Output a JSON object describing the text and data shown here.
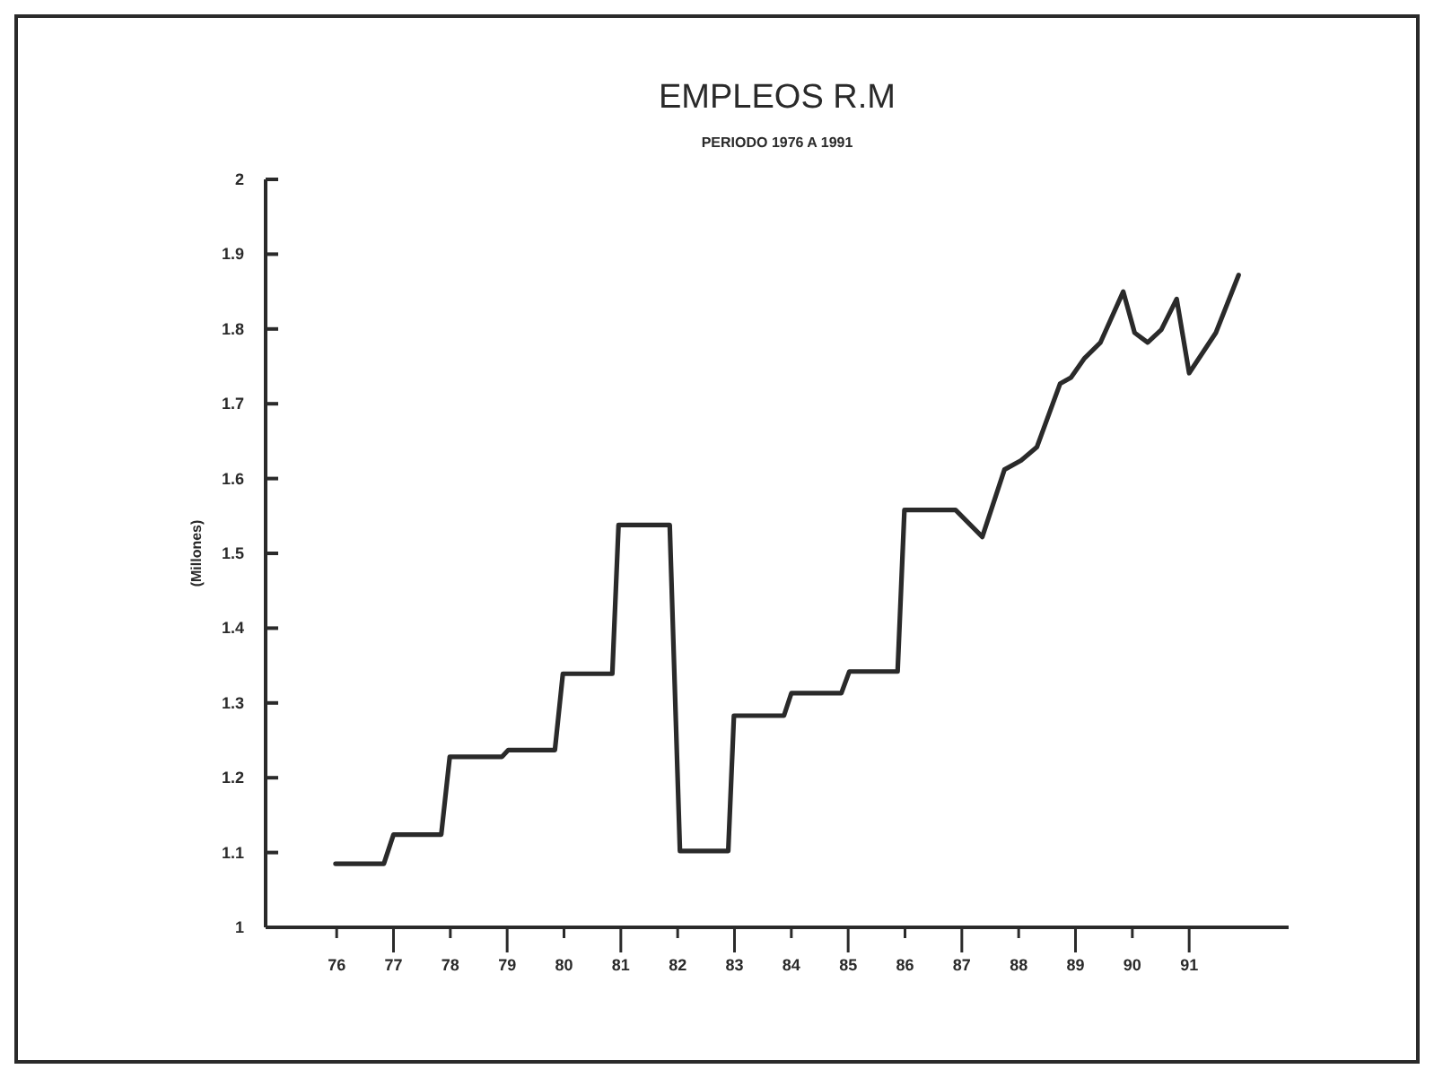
{
  "chart_data": {
    "type": "line",
    "title": "EMPLEOS R.M",
    "subtitle": "PERIODO 1976 A 1991",
    "ylabel": "(Millones)",
    "series": [
      {
        "color": "#2a2a2a",
        "x": [
          75.98,
          76.83,
          77.0,
          77.84,
          77.99,
          78.91,
          79.02,
          79.84,
          79.98,
          80.85,
          80.96,
          81.86,
          82.04,
          82.89,
          82.99,
          83.87,
          84.0,
          84.88,
          85.02,
          85.87,
          85.99,
          86.89,
          87.36,
          87.75,
          88.04,
          88.32,
          88.73,
          88.92,
          89.16,
          89.44,
          89.84,
          90.04,
          90.27,
          90.51,
          90.78,
          91.0,
          91.47,
          91.87
        ],
        "values": [
          1.085,
          1.085,
          1.124,
          1.124,
          1.228,
          1.228,
          1.237,
          1.237,
          1.339,
          1.339,
          1.538,
          1.538,
          1.102,
          1.102,
          1.283,
          1.283,
          1.313,
          1.313,
          1.342,
          1.342,
          1.558,
          1.558,
          1.522,
          1.612,
          1.624,
          1.642,
          1.727,
          1.735,
          1.761,
          1.782,
          1.85,
          1.795,
          1.782,
          1.799,
          1.84,
          1.741,
          1.795,
          1.872
        ]
      }
    ],
    "xlim": [
      74.75,
      92.75
    ],
    "xticks": [
      76,
      77,
      78,
      79,
      80,
      81,
      82,
      83,
      84,
      85,
      86,
      87,
      88,
      89,
      90,
      91
    ],
    "ylim": [
      1,
      2
    ],
    "yticks": [
      1,
      1.1,
      1.2,
      1.3,
      1.4,
      1.5,
      1.6,
      1.7,
      1.8,
      1.9,
      2
    ],
    "grid": false
  }
}
